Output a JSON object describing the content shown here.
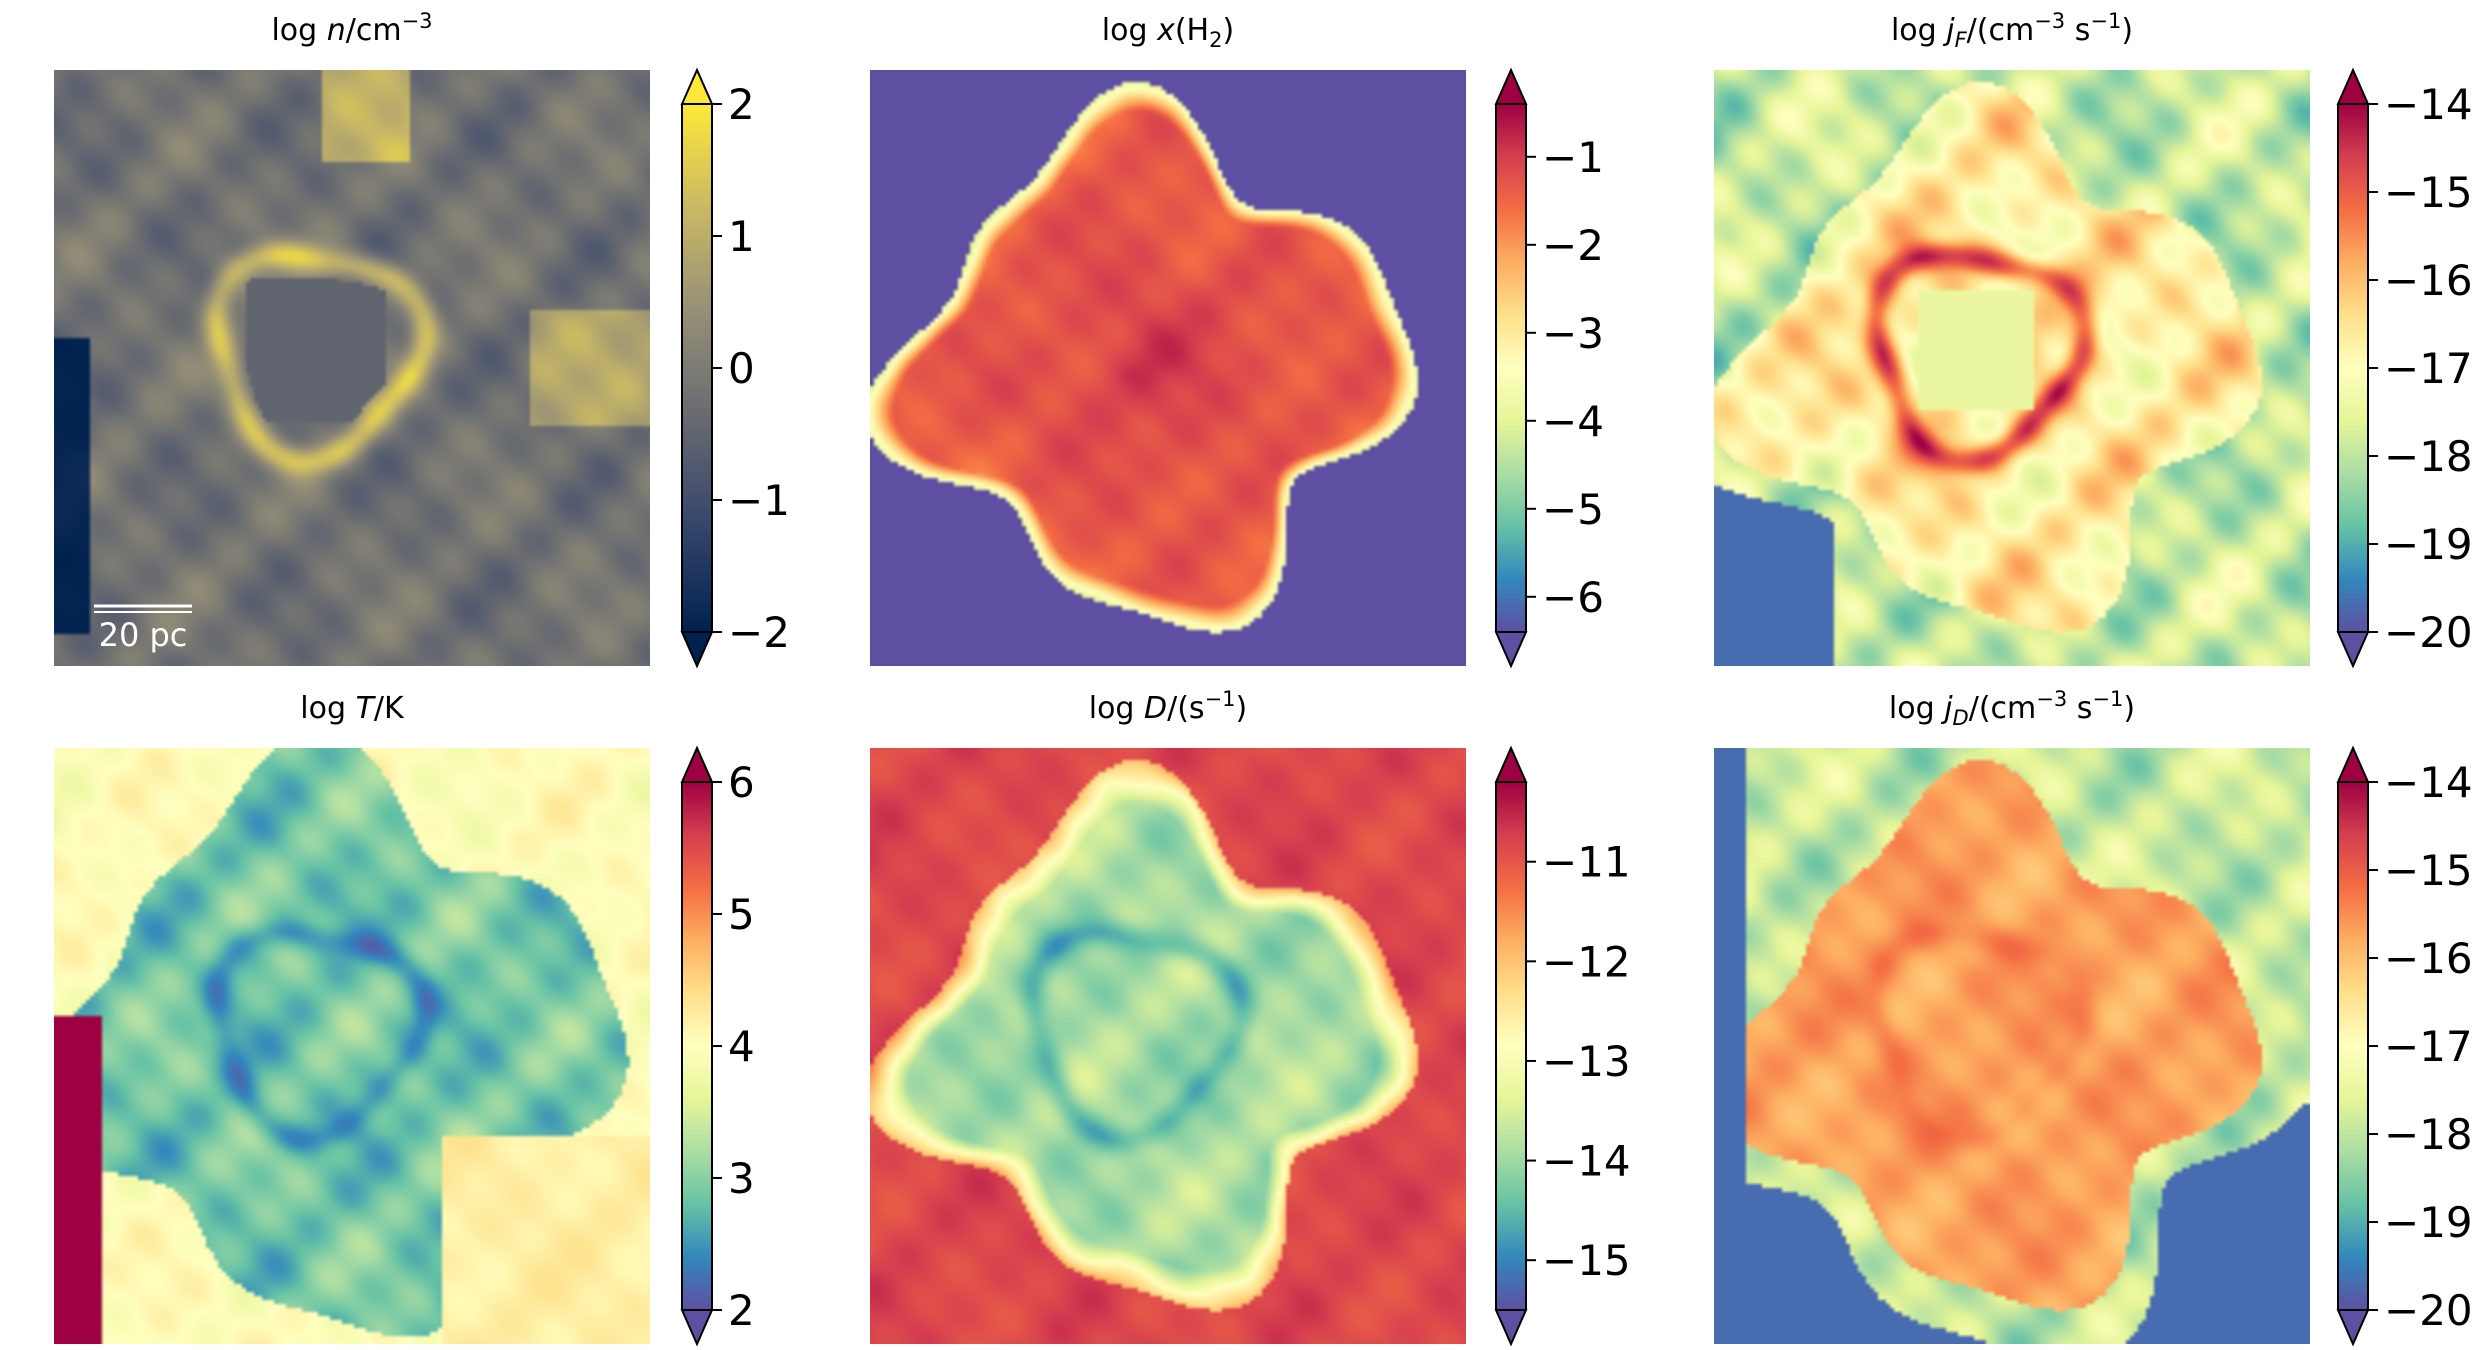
{
  "chart_data": [
    {
      "type": "heatmap",
      "id": "density",
      "title_main": "log",
      "title_sym": "n",
      "title_rest": "/cm",
      "title_sup": "−3",
      "colormap": "cividis",
      "colorbar": {
        "min": -2,
        "max": 2,
        "ticks": [
          2,
          1,
          0,
          -1,
          -2
        ],
        "tick_labels": [
          "2",
          "1",
          "0",
          "−1",
          "−2"
        ],
        "extend": "both"
      },
      "scalebar": {
        "label": "20 pc"
      }
    },
    {
      "type": "heatmap",
      "id": "h2-fraction",
      "title_main": "log",
      "title_sym": "x",
      "title_rest": "(H",
      "title_sub": "2",
      "title_end": ")",
      "colormap": "Spectral_r",
      "colorbar": {
        "min": -6.4,
        "max": -0.4,
        "ticks": [
          -1,
          -2,
          -3,
          -4,
          -5,
          -6
        ],
        "tick_labels": [
          "−1",
          "−2",
          "−3",
          "−4",
          "−5",
          "−6"
        ],
        "extend": "both"
      }
    },
    {
      "type": "heatmap",
      "id": "j-formation",
      "title_main": "log",
      "title_sym": "j",
      "title_symsub": "F",
      "title_rest": "/(cm",
      "title_sup": "−3",
      "title_mid": " s",
      "title_sup2": "−1",
      "title_end": ")",
      "colormap": "Spectral_r",
      "colorbar": {
        "min": -20,
        "max": -14,
        "ticks": [
          -14,
          -15,
          -16,
          -17,
          -18,
          -19,
          -20
        ],
        "tick_labels": [
          "−14",
          "−15",
          "−16",
          "−17",
          "−18",
          "−19",
          "−20"
        ],
        "extend": "both"
      }
    },
    {
      "type": "heatmap",
      "id": "temperature",
      "title_main": "log",
      "title_sym": "T",
      "title_rest": "/K",
      "colormap": "Spectral_r",
      "colorbar": {
        "min": 2,
        "max": 6,
        "ticks": [
          6,
          5,
          4,
          3,
          2
        ],
        "tick_labels": [
          "6",
          "5",
          "4",
          "3",
          "2"
        ],
        "extend": "both"
      }
    },
    {
      "type": "heatmap",
      "id": "dissociation-rate",
      "title_main": "log",
      "title_sym": "D",
      "title_rest": "/(s",
      "title_sup": "−1",
      "title_end": ")",
      "colormap": "Spectral_r",
      "colorbar": {
        "min": -15.5,
        "max": -10.2,
        "ticks": [
          -11,
          -12,
          -13,
          -14,
          -15
        ],
        "tick_labels": [
          "−11",
          "−12",
          "−13",
          "−14",
          "−15"
        ],
        "extend": "both"
      }
    },
    {
      "type": "heatmap",
      "id": "j-dissociation",
      "title_main": "log",
      "title_sym": "j",
      "title_symsub": "D",
      "title_rest": "/(cm",
      "title_sup": "−3",
      "title_mid": " s",
      "title_sup2": "−1",
      "title_end": ")",
      "colormap": "Spectral_r",
      "colorbar": {
        "min": -20,
        "max": -14,
        "ticks": [
          -14,
          -15,
          -16,
          -17,
          -18,
          -19,
          -20
        ],
        "tick_labels": [
          "−14",
          "−15",
          "−16",
          "−17",
          "−18",
          "−19",
          "−20"
        ],
        "extend": "both"
      }
    }
  ],
  "colors": {
    "cividis": [
      "#00224e",
      "#35456c",
      "#666970",
      "#948e77",
      "#c8b866",
      "#fee838"
    ],
    "spectral_r": [
      "#5e4fa2",
      "#3288bd",
      "#66c2a5",
      "#abdda4",
      "#e6f598",
      "#ffffbf",
      "#fee08b",
      "#fdae61",
      "#f46d43",
      "#d53e4f",
      "#9e0142"
    ]
  }
}
